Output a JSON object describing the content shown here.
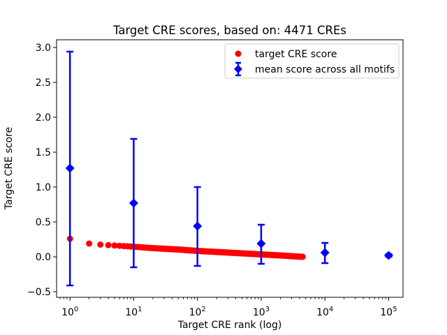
{
  "chart_data": {
    "type": "scatter",
    "title": "Target CRE scores, based on: 4471 CREs",
    "xlabel": "Target CRE rank (log)",
    "ylabel": "Target CRE score",
    "x_scale": "log",
    "grid": false,
    "xlim_log10": [
      -0.21,
      5.225
    ],
    "ylim": [
      -0.58,
      3.11
    ],
    "x_tick_base": 10,
    "x_tick_exponents": [
      0,
      1,
      2,
      3,
      4,
      5
    ],
    "y_ticks": [
      -0.5,
      0.0,
      0.5,
      1.0,
      1.5,
      2.0,
      2.5,
      3.0
    ],
    "legend_position": "upper right",
    "colors": {
      "target": "#ff0000",
      "mean": "#0000ff"
    },
    "series": [
      {
        "name": "target CRE score",
        "color": "#ff0000",
        "marker": "circle",
        "marker_diameter_px": 9,
        "n_points": 4471,
        "rank_range": [
          1,
          4471
        ],
        "trend_anchors_log10rank_score": [
          [
            0,
            0.26
          ],
          [
            0.301,
            0.19
          ],
          [
            0.477,
            0.175
          ],
          [
            0.602,
            0.168
          ],
          [
            0.778,
            0.158
          ],
          [
            1.0,
            0.145
          ],
          [
            1.3,
            0.125
          ],
          [
            1.7,
            0.105
          ],
          [
            2.0,
            0.085
          ],
          [
            2.3,
            0.07
          ],
          [
            2.7,
            0.05
          ],
          [
            3.0,
            0.035
          ],
          [
            3.3,
            0.02
          ],
          [
            3.6503,
            0.0
          ]
        ]
      },
      {
        "name": "mean score across all motifs",
        "color": "#0000ff",
        "marker": "diamond",
        "marker_width_px": 13,
        "points": [
          {
            "rank": 1,
            "mean": 1.27,
            "lo": -0.41,
            "hi": 2.94
          },
          {
            "rank": 10,
            "mean": 0.77,
            "lo": -0.15,
            "hi": 1.69
          },
          {
            "rank": 100,
            "mean": 0.44,
            "lo": -0.13,
            "hi": 1.0
          },
          {
            "rank": 1000,
            "mean": 0.19,
            "lo": -0.1,
            "hi": 0.46
          },
          {
            "rank": 10000,
            "mean": 0.06,
            "lo": -0.09,
            "hi": 0.2
          },
          {
            "rank": 100000,
            "mean": 0.02,
            "lo": 0.0,
            "hi": 0.04
          }
        ]
      }
    ]
  }
}
